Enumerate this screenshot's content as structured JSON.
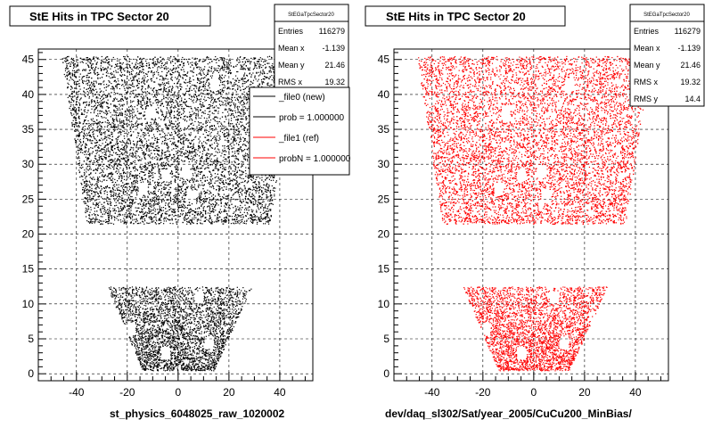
{
  "colors": {
    "background": "#ffffff",
    "frame": "#000000",
    "grid": "#000000",
    "ref_series": "#ff0000",
    "new_series": "#000000"
  },
  "chart_data": [
    {
      "type": "scatter",
      "title": "StE Hits in TPC Sector 20",
      "xlabel": "st_physics_6048025_raw_1020002",
      "ylabel": "",
      "xlim": [
        -55,
        53
      ],
      "ylim": [
        -1,
        46.5
      ],
      "x_ticks": [
        -40,
        -20,
        0,
        20,
        40
      ],
      "y_ticks": [
        0,
        5,
        10,
        15,
        20,
        25,
        30,
        35,
        40,
        45
      ],
      "x_tick_labels": [
        "-40",
        "-20",
        "0",
        "20",
        "40"
      ],
      "y_tick_labels": [
        "0",
        "5",
        "10",
        "15",
        "20",
        "25",
        "30",
        "35",
        "40",
        "45"
      ],
      "grid": true,
      "marker_color": "#000000",
      "regions": [
        {
          "name": "outer",
          "y_range": [
            21.5,
            45.5
          ],
          "x_bottom": [
            -36,
            36
          ],
          "x_top": [
            -46,
            46
          ]
        },
        {
          "name": "inner",
          "y_range": [
            0.5,
            12.5
          ],
          "x_bottom": [
            -14,
            14
          ],
          "x_top": [
            -28,
            29
          ]
        }
      ],
      "stats": {
        "title": "StEGaTpcSector20",
        "rows": [
          {
            "label": "Entries",
            "value": "116279"
          },
          {
            "label": "Mean x",
            "value": "-1.139"
          },
          {
            "label": "Mean y",
            "value": "21.46"
          },
          {
            "label": "RMS x",
            "value": "19.32"
          }
        ]
      },
      "legend": {
        "placement": "top-right",
        "entries": [
          {
            "label": "_file0 (new)",
            "color": "#000000"
          },
          {
            "label": "prob = 1.000000",
            "color": "#000000"
          },
          {
            "label": "_file1 (ref)",
            "color": "#ff0000"
          },
          {
            "label": "probN = 1.000000",
            "color": "#ff0000"
          }
        ]
      }
    },
    {
      "type": "scatter",
      "title": "StE Hits in TPC Sector 20",
      "xlabel": "dev/daq_sl302/Sat/year_2005/CuCu200_MinBias/",
      "ylabel": "",
      "xlim": [
        -55,
        53
      ],
      "ylim": [
        -1,
        46.5
      ],
      "x_ticks": [
        -40,
        -20,
        0,
        20,
        40
      ],
      "y_ticks": [
        0,
        5,
        10,
        15,
        20,
        25,
        30,
        35,
        40,
        45
      ],
      "x_tick_labels": [
        "-40",
        "-20",
        "0",
        "20",
        "40"
      ],
      "y_tick_labels": [
        "0",
        "5",
        "10",
        "15",
        "20",
        "25",
        "30",
        "35",
        "40",
        "45"
      ],
      "grid": true,
      "marker_color": "#ff0000",
      "regions": [
        {
          "name": "outer",
          "y_range": [
            21.5,
            45.5
          ],
          "x_bottom": [
            -36,
            36
          ],
          "x_top": [
            -46,
            46
          ]
        },
        {
          "name": "inner",
          "y_range": [
            0.5,
            12.5
          ],
          "x_bottom": [
            -14,
            14
          ],
          "x_top": [
            -28,
            29
          ]
        }
      ],
      "stats": {
        "title": "StEGaTpcSector20",
        "rows": [
          {
            "label": "Entries",
            "value": "116279"
          },
          {
            "label": "Mean x",
            "value": "-1.139"
          },
          {
            "label": "Mean y",
            "value": "21.46"
          },
          {
            "label": "RMS x",
            "value": "19.32"
          },
          {
            "label": "RMS y",
            "value": "14.4"
          }
        ]
      }
    }
  ]
}
